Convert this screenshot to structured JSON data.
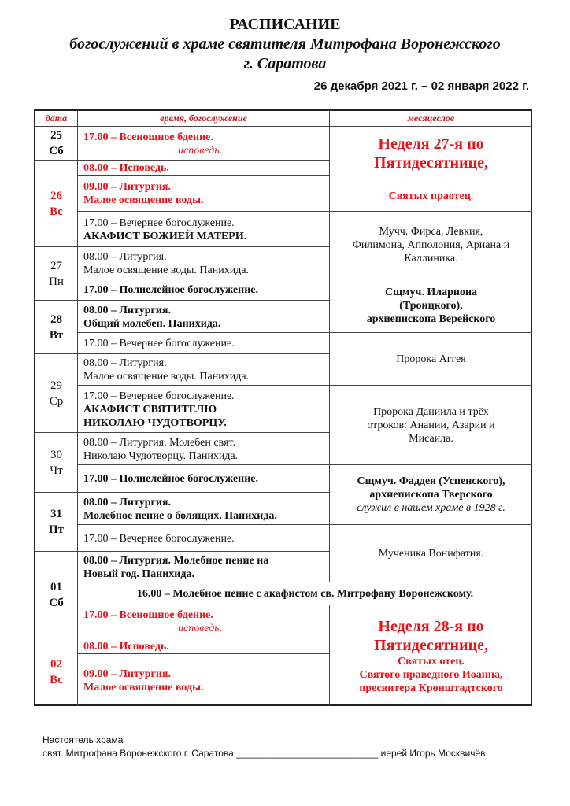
{
  "header": {
    "title": "РАСПИСАНИЕ",
    "subtitle1": "богослужений в храме святителя Митрофана Воронежского",
    "subtitle2": "г. Саратова",
    "period": "26 декабря 2021 г. – 02 января 2022 г."
  },
  "columns": [
    "дата",
    "время, богослужение",
    "месяцеслов"
  ],
  "dates": [
    "25\nСб",
    "26\nВс",
    "27\nПн",
    "28\nВт",
    "29\nСр",
    "30\nЧт",
    "31\nПт",
    "01\nСб",
    "02\nВс"
  ],
  "services": [
    [
      "17.00 – Всенощное бдение.",
      "исповедь."
    ],
    [
      "08.00 – Исповедь."
    ],
    [
      "09.00 – Литургия.\nМалое освящение воды."
    ],
    [
      "17.00 – Вечернее богослужение.",
      "АКАФИСТ БОЖИЕЙ МАТЕРИ."
    ],
    [
      "08.00 – Литургия.\nМалое освящение воды. Панихида."
    ],
    [
      "17.00 – Полиелейное богослужение."
    ],
    [
      "08.00 – Литургия.\nОбщий молебен. Панихида."
    ],
    [
      "17.00 – Вечернее богослужение."
    ],
    [
      "08.00 – Литургия.\nМалое освящение воды. Панихида."
    ],
    [
      "17.00 – Вечернее богослужение.",
      "АКАФИСТ СВЯТИТЕЛЮ\nНИКОЛАЮ ЧУДОТВОРЦУ."
    ],
    [
      "08.00 – Литургия. Молебен свят.\nНиколаю Чудотворцу. Панихида."
    ],
    [
      "17.00 – Полиелейное богослужение."
    ],
    [
      "08.00 – Литургия.\nМолебное пение о болящих. Панихида."
    ],
    [
      "17.00 – Вечернее богослужение."
    ],
    [
      "08.00 – Литургия. Молебное пение на\nНовый год. Панихида."
    ],
    [
      "16.00 – Молебное пение с акафистом св. Митрофану Воронежскому."
    ],
    [
      "17.00 – Всенощное бдение.",
      "исповедь."
    ],
    [
      "08.00 – Исповедь."
    ],
    [
      "09.00 – Литургия.\nМалое освящение воды."
    ]
  ],
  "calendar": [
    [
      "Неделя 27-я по\nПятидесятнице,",
      "Святых праотец."
    ],
    [
      "Мучч. Фирса, Левкия,\nФилимона, Апполония, Ариана и\nКаллиника."
    ],
    [
      "Сщмуч. Илариона\n(Троицкого),\nархиепископа Верейского"
    ],
    [
      "Пророка Аггея"
    ],
    [
      "Пророка Даниила и трёх\nотроков: Анании, Азарии и\nМисаила."
    ],
    [
      "Сщмуч. Фаддея (Успенского),\nархиепископа Тверского",
      "служил в нашем храме в 1928 г."
    ],
    [
      "Мученика Вонифатия."
    ],
    [
      "Неделя 28-я по\nПятидесятнице,",
      "Святых отец.\nСвятого праведного Иоанна,\nпресвитера Кронштадтского"
    ]
  ],
  "footer": {
    "line1": "Настоятель храма",
    "line2": "свят. Митрофана Воронежского г. Саратова ___________________________ иерей Игорь Москвичёв"
  },
  "colors": {
    "accent_red": "#e3151c",
    "header_red": "#c8161d",
    "text": "#111111"
  }
}
